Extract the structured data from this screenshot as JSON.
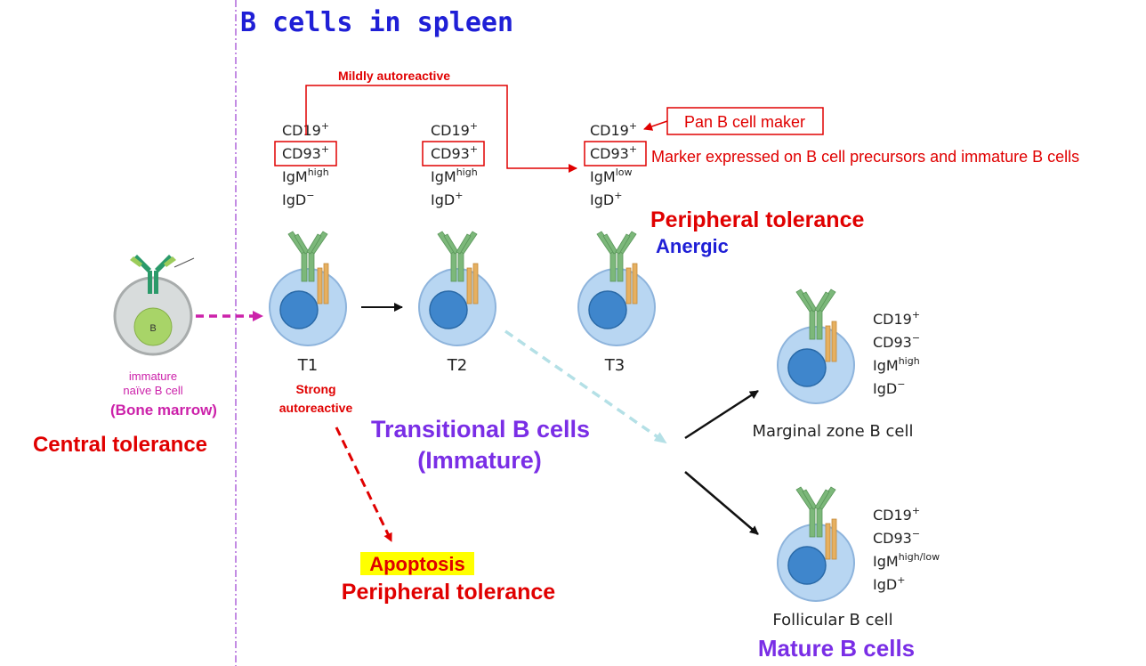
{
  "title": "B cells in spleen",
  "bone_marrow": {
    "cell_letter": "B",
    "caption_line1": "immature",
    "caption_line2": "naïve B cell",
    "location": "(Bone marrow)",
    "tolerance": "Central tolerance"
  },
  "cells": {
    "t1": {
      "label": "T1",
      "markers": [
        {
          "base": "CD19",
          "sup": "+"
        },
        {
          "base": "CD93",
          "sup": "+"
        },
        {
          "base": "IgM",
          "sup": "high"
        },
        {
          "base": "IgD",
          "sup": "−"
        }
      ]
    },
    "t2": {
      "label": "T2",
      "markers": [
        {
          "base": "CD19",
          "sup": "+"
        },
        {
          "base": "CD93",
          "sup": "+"
        },
        {
          "base": "IgM",
          "sup": "high"
        },
        {
          "base": "IgD",
          "sup": "+"
        }
      ]
    },
    "t3": {
      "label": "T3",
      "markers": [
        {
          "base": "CD19",
          "sup": "+"
        },
        {
          "base": "CD93",
          "sup": "+"
        },
        {
          "base": "IgM",
          "sup": "low"
        },
        {
          "base": "IgD",
          "sup": "+"
        }
      ]
    },
    "marginal": {
      "label": "Marginal zone B cell",
      "markers": [
        {
          "base": "CD19",
          "sup": "+"
        },
        {
          "base": "CD93",
          "sup": "−"
        },
        {
          "base": "IgM",
          "sup": "high"
        },
        {
          "base": "IgD",
          "sup": "−"
        }
      ]
    },
    "follicular": {
      "label": "Follicular B cell",
      "markers": [
        {
          "base": "CD19",
          "sup": "+"
        },
        {
          "base": "CD93",
          "sup": "−"
        },
        {
          "base": "IgM",
          "sup": "high/low"
        },
        {
          "base": "IgD",
          "sup": "+"
        }
      ]
    }
  },
  "annotations": {
    "mildly_autoreactive": "Mildly autoreactive",
    "strong_line1": "Strong",
    "strong_line2": "autoreactive",
    "pan_b": "Pan B cell maker",
    "cd93_note": "Marker expressed on B cell precursors and immature B cells",
    "peripheral_tolerance_t3": "Peripheral tolerance",
    "anergic": "Anergic",
    "transitional_line1": "Transitional B cells",
    "transitional_line2": "(Immature)",
    "apoptosis": "Apoptosis",
    "peripheral_tolerance_bottom": "Peripheral tolerance",
    "mature": "Mature B cells"
  },
  "colors": {
    "title_blue": "#1f1fd6",
    "red": "#e00000",
    "magenta": "#cc22aa",
    "purple": "#7a2ee6",
    "cell_fill": "#b8d6f2",
    "nucleus": "#3f86cc",
    "receptor_green": "#7cb87a",
    "receptor_orange": "#e6b060",
    "highlight_yellow": "#ffff00"
  }
}
